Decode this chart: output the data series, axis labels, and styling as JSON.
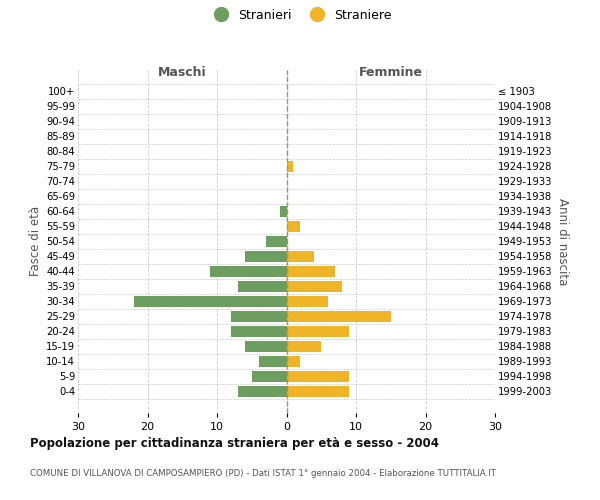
{
  "age_groups": [
    "100+",
    "95-99",
    "90-94",
    "85-89",
    "80-84",
    "75-79",
    "70-74",
    "65-69",
    "60-64",
    "55-59",
    "50-54",
    "45-49",
    "40-44",
    "35-39",
    "30-34",
    "25-29",
    "20-24",
    "15-19",
    "10-14",
    "5-9",
    "0-4"
  ],
  "birth_years": [
    "≤ 1903",
    "1904-1908",
    "1909-1913",
    "1914-1918",
    "1919-1923",
    "1924-1928",
    "1929-1933",
    "1934-1938",
    "1939-1943",
    "1944-1948",
    "1949-1953",
    "1954-1958",
    "1959-1963",
    "1964-1968",
    "1969-1973",
    "1974-1978",
    "1979-1983",
    "1984-1988",
    "1989-1993",
    "1994-1998",
    "1999-2003"
  ],
  "males": [
    0,
    0,
    0,
    0,
    0,
    0,
    0,
    0,
    1,
    0,
    3,
    6,
    11,
    7,
    22,
    8,
    8,
    6,
    4,
    5,
    7
  ],
  "females": [
    0,
    0,
    0,
    0,
    0,
    1,
    0,
    0,
    0,
    2,
    0,
    4,
    7,
    8,
    6,
    15,
    9,
    5,
    2,
    9,
    9
  ],
  "male_color": "#6e9e5f",
  "female_color": "#f0b429",
  "title": "Popolazione per cittadinanza straniera per età e sesso - 2004",
  "subtitle": "COMUNE DI VILLANOVA DI CAMPOSAMPIERO (PD) - Dati ISTAT 1° gennaio 2004 - Elaborazione TUTTITALIA.IT",
  "label_maschi": "Maschi",
  "label_femmine": "Femmine",
  "ylabel_left": "Fasce di età",
  "ylabel_right": "Anni di nascita",
  "legend_male": "Stranieri",
  "legend_female": "Straniere",
  "xlim": 30,
  "bg": "#ffffff",
  "grid_color": "#cccccc",
  "center_line_color": "#999966",
  "bar_height": 0.75
}
